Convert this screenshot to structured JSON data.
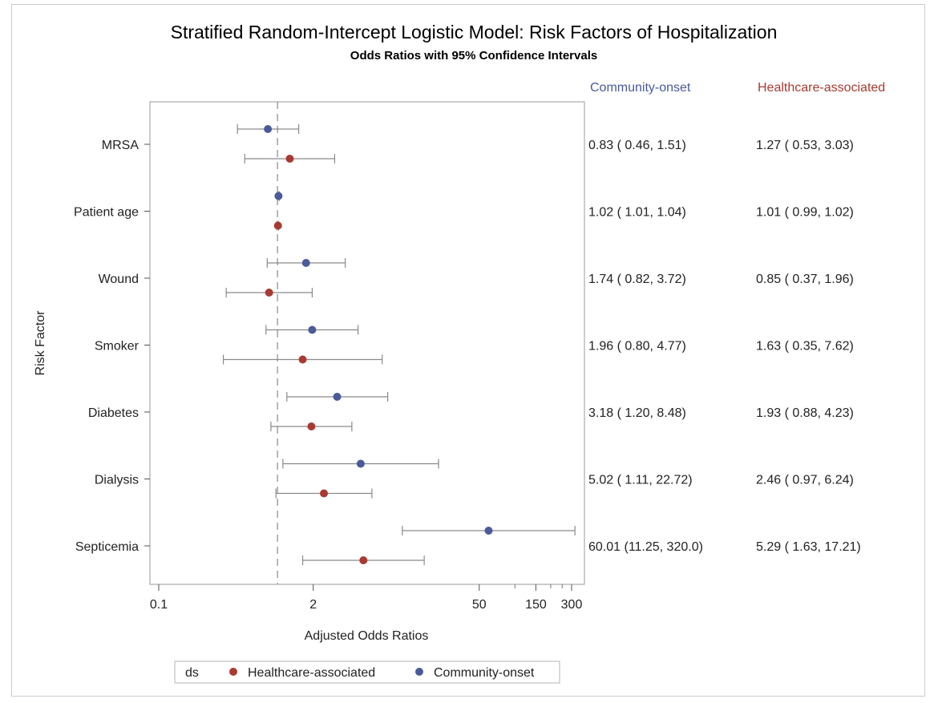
{
  "chart_data": {
    "type": "scatter",
    "title": "Stratified Random-Intercept Logistic Model: Risk Factors of Hospitalization",
    "subtitle": "Odds Ratios with 95% Confidence Intervals",
    "xlabel": "Adjusted Odds Ratios",
    "ylabel": "Risk Factor",
    "x_scale": "log",
    "xlim": [
      0.1,
      350
    ],
    "x_ticks": [
      {
        "value": 0.1,
        "label": "0.1"
      },
      {
        "value": 2,
        "label": "2"
      },
      {
        "value": 50,
        "label": "50"
      },
      {
        "value": 150,
        "label": "150"
      },
      {
        "value": 300,
        "label": "300"
      }
    ],
    "x_minor_ticks": [
      100,
      200,
      250
    ],
    "reference_line": 1,
    "categories": [
      "MRSA",
      "Patient age",
      "Wound",
      "Smoker",
      "Diabetes",
      "Dialysis",
      "Septicemia"
    ],
    "series": [
      {
        "name": "Community-onset",
        "color": "#4a5a9a",
        "or": [
          0.83,
          1.02,
          1.74,
          1.96,
          3.18,
          5.02,
          60.01
        ],
        "lower": [
          0.46,
          1.01,
          0.82,
          0.8,
          1.2,
          1.11,
          11.25
        ],
        "upper": [
          1.51,
          1.04,
          3.72,
          4.77,
          8.48,
          22.72,
          320.0
        ],
        "labels": [
          "0.83 ( 0.46,  1.51)",
          "1.02 ( 1.01,  1.04)",
          "1.74 ( 0.82,  3.72)",
          "1.96 ( 0.80,  4.77)",
          "3.18 ( 1.20,  8.48)",
          "5.02 ( 1.11, 22.72)",
          "60.01 (11.25, 320.0)"
        ]
      },
      {
        "name": "Healthcare-associated",
        "color": "#a83a32",
        "or": [
          1.27,
          1.01,
          0.85,
          1.63,
          1.93,
          2.46,
          5.29
        ],
        "lower": [
          0.53,
          0.99,
          0.37,
          0.35,
          0.88,
          0.97,
          1.63
        ],
        "upper": [
          3.03,
          1.02,
          1.96,
          7.62,
          4.23,
          6.24,
          17.21
        ],
        "labels": [
          "1.27 ( 0.53,  3.03)",
          "1.01 ( 0.99,  1.02)",
          "0.85 ( 0.37,  1.96)",
          "1.63 ( 0.35,  7.62)",
          "1.93 ( 0.88,  4.23)",
          "2.46 ( 0.97,  6.24)",
          "5.29 ( 1.63, 17.21)"
        ]
      }
    ],
    "legend": {
      "position": "bottom",
      "title": "ds",
      "entries": [
        "Healthcare-associated",
        "Community-onset"
      ]
    },
    "grid": false
  }
}
